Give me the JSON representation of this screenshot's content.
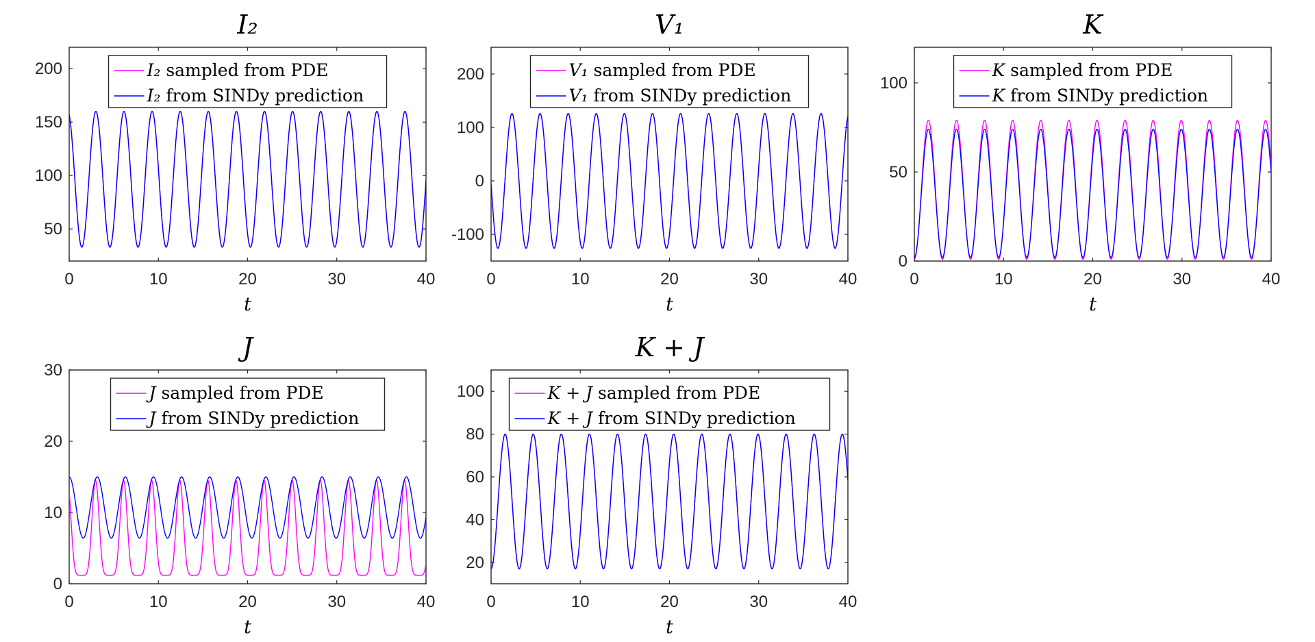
{
  "figure": {
    "colors": {
      "pde": "#ff00ff",
      "sindy": "#0000ff",
      "axis": "#262626"
    }
  },
  "chart_data": [
    {
      "type": "line",
      "title": "I₂",
      "xlabel": "t",
      "xlim": [
        0,
        40
      ],
      "ylim": [
        20,
        220
      ],
      "xticks": [
        0,
        10,
        20,
        30,
        40
      ],
      "yticks": [
        50,
        100,
        150,
        200
      ],
      "legend_position": "top-center",
      "series": [
        {
          "name": "PDE",
          "legend_symbol": "I₂",
          "legend_text": " sampled from PDE",
          "color": "#ff00ff",
          "period": 3.15,
          "min": 33,
          "max": 160,
          "start": 157,
          "falling": true
        },
        {
          "name": "SINDy",
          "legend_symbol": "I₂",
          "legend_text": " from SINDy prediction",
          "color": "#0000ff",
          "period": 3.15,
          "min": 33,
          "max": 160,
          "start": 157,
          "falling": true
        }
      ]
    },
    {
      "type": "line",
      "title": "V₁",
      "xlabel": "t",
      "xlim": [
        0,
        40
      ],
      "ylim": [
        -150,
        250
      ],
      "xticks": [
        0,
        10,
        20,
        30,
        40
      ],
      "yticks": [
        -100,
        0,
        100,
        200
      ],
      "legend_position": "top-center",
      "series": [
        {
          "name": "PDE",
          "legend_symbol": "V₁",
          "legend_text": " sampled from PDE",
          "color": "#ff00ff",
          "period": 3.15,
          "min": -126,
          "max": 126,
          "start": -5,
          "falling": true
        },
        {
          "name": "SINDy",
          "legend_symbol": "V₁",
          "legend_text": " from SINDy prediction",
          "color": "#0000ff",
          "period": 3.15,
          "min": -126,
          "max": 126,
          "start": -5,
          "falling": true
        }
      ]
    },
    {
      "type": "line",
      "title": "K",
      "xlabel": "t",
      "xlim": [
        0,
        40
      ],
      "ylim": [
        0,
        120
      ],
      "xticks": [
        0,
        10,
        20,
        30,
        40
      ],
      "yticks": [
        0,
        50,
        100
      ],
      "legend_position": "top-center",
      "series": [
        {
          "name": "PDE",
          "legend_symbol": "K",
          "legend_text": " sampled from PDE",
          "color": "#ff00ff",
          "period": 3.15,
          "min": 1,
          "max": 79,
          "start": 1,
          "falling": false
        },
        {
          "name": "SINDy",
          "legend_symbol": "K",
          "legend_text": " from SINDy prediction",
          "color": "#0000ff",
          "period": 3.15,
          "min": 2,
          "max": 74,
          "start": 1,
          "falling": false
        }
      ]
    },
    {
      "type": "line",
      "title": "J",
      "xlabel": "t",
      "xlim": [
        0,
        40
      ],
      "ylim": [
        0,
        30
      ],
      "xticks": [
        0,
        10,
        20,
        30,
        40
      ],
      "yticks": [
        0,
        10,
        20,
        30
      ],
      "legend_position": "top-center",
      "series": [
        {
          "name": "PDE",
          "legend_symbol": "J",
          "legend_text": " sampled from PDE",
          "color": "#ff00ff",
          "period": 3.15,
          "min": 1.2,
          "max": 14.5,
          "start": 14,
          "falling": true,
          "spiky": true
        },
        {
          "name": "SINDy",
          "legend_symbol": "J",
          "legend_text": " from SINDy prediction",
          "color": "#0000ff",
          "period": 3.15,
          "min": 6.4,
          "max": 15,
          "start": 15,
          "falling": true
        }
      ]
    },
    {
      "type": "line",
      "title": "K + J",
      "xlabel": "t",
      "xlim": [
        0,
        40
      ],
      "ylim": [
        10,
        110
      ],
      "xticks": [
        0,
        10,
        20,
        30,
        40
      ],
      "yticks": [
        20,
        40,
        60,
        80,
        100
      ],
      "legend_position": "top-center",
      "series": [
        {
          "name": "PDE",
          "legend_symbol": "K + J",
          "legend_text": " sampled from PDE",
          "color": "#ff00ff",
          "period": 3.15,
          "min": 17,
          "max": 80,
          "start": 17,
          "falling": false
        },
        {
          "name": "SINDy",
          "legend_symbol": "K + J",
          "legend_text": " from SINDy prediction",
          "color": "#0000ff",
          "period": 3.15,
          "min": 17,
          "max": 80,
          "start": 17,
          "falling": false
        }
      ]
    }
  ]
}
